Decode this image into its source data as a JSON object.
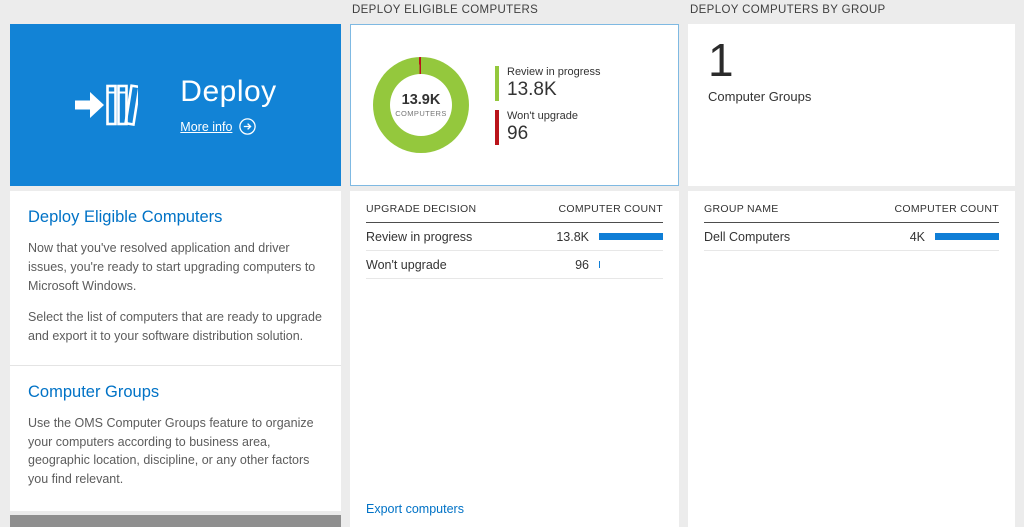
{
  "colors": {
    "page_bg": "#ececec",
    "tile_blue": "#1283d6",
    "accent_blue": "#0072c6",
    "bar_blue": "#0f7ed6",
    "chart_green": "#94c83d",
    "chart_red": "#ba141a",
    "selected_tile_border": "#7fb9e2"
  },
  "left": {
    "tile": {
      "title": "Deploy",
      "more_info_label": "More info",
      "deploy_icon": "arrow-into-books-icon",
      "more_info_icon": "circle-right-arrow-icon"
    },
    "sections": [
      {
        "heading": "Deploy Eligible Computers",
        "paragraphs": [
          "Now that you've resolved application and driver issues, you're ready to start upgrading computers to Microsoft Windows.",
          "Select the list of computers that are ready to upgrade and export it to your software distribution solution."
        ]
      },
      {
        "heading": "Computer Groups",
        "paragraphs": [
          "Use the OMS Computer Groups feature to organize your computers according to business area, geographic location, discipline, or any other factors you find relevant."
        ]
      }
    ]
  },
  "middle": {
    "header": "DEPLOY ELIGIBLE COMPUTERS",
    "donut": {
      "type": "donut",
      "center_value": "13.9K",
      "center_label": "COMPUTERS",
      "segments": [
        {
          "label": "Review in progress",
          "display": "13.8K",
          "count": 13800,
          "color": "#94c83d"
        },
        {
          "label": "Won't upgrade",
          "display": "96",
          "count": 96,
          "color": "#ba141a"
        }
      ]
    },
    "table": {
      "columns": [
        "UPGRADE DECISION",
        "COMPUTER COUNT"
      ],
      "rows": [
        {
          "label": "Review in progress",
          "display": "13.8K",
          "bar_pct": 100
        },
        {
          "label": "Won't upgrade",
          "display": "96",
          "bar_pct": 2
        }
      ]
    },
    "export_label": "Export computers"
  },
  "right": {
    "header": "DEPLOY COMPUTERS BY GROUP",
    "tile": {
      "count": "1",
      "label": "Computer Groups"
    },
    "table": {
      "columns": [
        "GROUP NAME",
        "COMPUTER COUNT"
      ],
      "rows": [
        {
          "label": "Dell Computers",
          "display": "4K",
          "bar_pct": 100
        }
      ]
    }
  }
}
